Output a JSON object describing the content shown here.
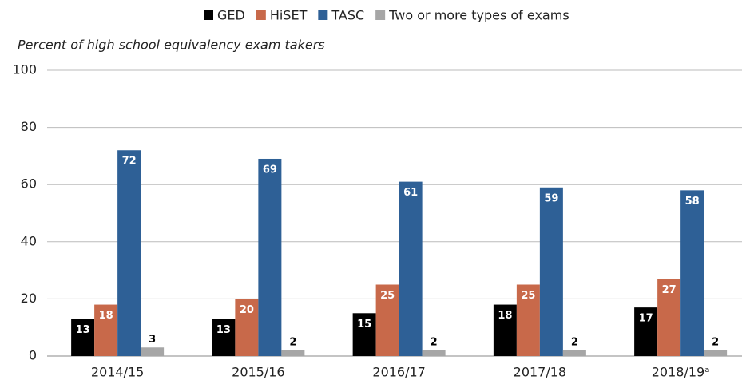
{
  "chart_data": {
    "type": "bar",
    "y_axis_label": "Percent of high school equivalency exam takers",
    "categories": [
      "2014/15",
      "2015/16",
      "2016/17",
      "2017/18",
      "2018/19ᵃ"
    ],
    "series": [
      {
        "name": "GED",
        "color": "#000000",
        "values": [
          13,
          13,
          15,
          18,
          17
        ]
      },
      {
        "name": "HiSET",
        "color": "#c8694a",
        "values": [
          18,
          20,
          25,
          25,
          27
        ]
      },
      {
        "name": "TASC",
        "color": "#2e6096",
        "values": [
          72,
          69,
          61,
          59,
          58
        ]
      },
      {
        "name": "Two or more types of exams",
        "color": "#a6a6a6",
        "values": [
          3,
          2,
          2,
          2,
          2
        ]
      }
    ],
    "ylim": [
      0,
      100
    ],
    "yticks": [
      0,
      20,
      40,
      60,
      80,
      100
    ],
    "grid": true,
    "legend": "top"
  }
}
